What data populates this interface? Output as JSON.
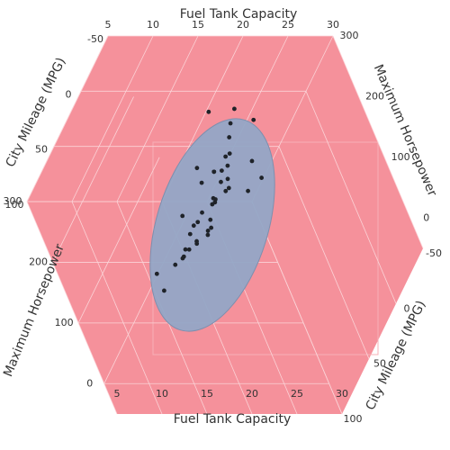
{
  "chart_data": {
    "type": "scatter3d",
    "x_label": "Fuel Tank Capacity",
    "y_label": "City Mileage (MPG)",
    "z_label": "Maximum Horsepower",
    "xlim": [
      5,
      30
    ],
    "xticks": [
      5,
      10,
      15,
      20,
      25,
      30
    ],
    "ylim": [
      -50,
      100
    ],
    "yticks": [
      -50,
      0,
      50,
      100
    ],
    "zlim": [
      -50,
      300
    ],
    "zticks": [
      0,
      100,
      200,
      300
    ],
    "grid": true,
    "color": "#1f2329",
    "points": {
      "x": [
        13.2,
        18.0,
        21.1,
        16.4,
        15.0,
        20.0,
        18.5,
        16.0,
        23.0,
        18.0,
        12.4,
        11.9,
        15.9,
        13.2,
        10.0,
        14.0,
        16.9,
        18.8,
        20.0,
        17.0,
        22.0,
        19.8,
        13.7,
        15.5,
        14.5,
        11.0,
        12.7,
        16.5,
        19.3,
        20.6,
        17.2,
        14.9,
        13.6,
        18.4,
        21.2,
        24.5,
        9.2,
        22.5,
        15.2,
        19.0,
        12.0,
        23.0
      ],
      "y": [
        25,
        18,
        20,
        19,
        22,
        16,
        19,
        17,
        16,
        18,
        29,
        31,
        23,
        25,
        46,
        25,
        20,
        17,
        18,
        21,
        17,
        18,
        26,
        22,
        24,
        33,
        28,
        20,
        19,
        18,
        21,
        23,
        26,
        19,
        17,
        15,
        39,
        16,
        22,
        19,
        30,
        18
      ],
      "z": [
        140,
        200,
        172,
        208,
        110,
        295,
        170,
        180,
        300,
        200,
        92,
        81,
        130,
        110,
        55,
        124,
        160,
        200,
        225,
        155,
        278,
        210,
        100,
        115,
        128,
        74,
        90,
        150,
        190,
        230,
        160,
        105,
        96,
        185,
        255,
        280,
        70,
        214,
        140,
        175,
        82,
        190
      ]
    }
  }
}
